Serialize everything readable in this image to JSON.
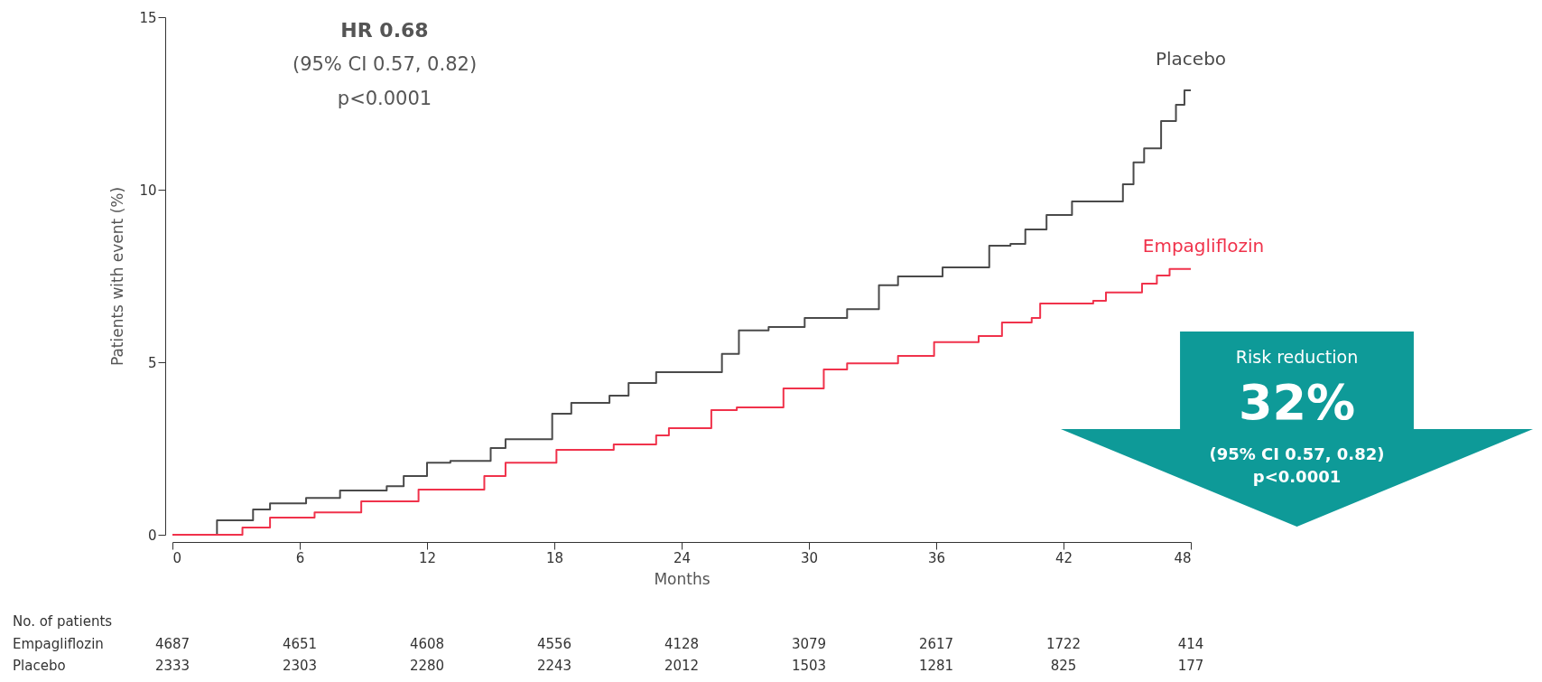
{
  "chart_data": {
    "type": "step",
    "xlabel": "Months",
    "ylabel": "Patients with event (%)",
    "xlim": [
      0,
      48
    ],
    "xticks": [
      0,
      6,
      12,
      18,
      24,
      30,
      36,
      42,
      48
    ],
    "ylim": [
      0,
      15
    ],
    "yticks": [
      0,
      5,
      10,
      15
    ],
    "grid": false,
    "legend": false,
    "series": [
      {
        "name": "Placebo",
        "color": "#4a4a4a",
        "x": [
          0,
          2.1,
          3.8,
          4.6,
          6.3,
          7.9,
          10.1,
          10.9,
          12.0,
          13.1,
          15.0,
          15.7,
          17.9,
          18.8,
          20.6,
          21.5,
          22.8,
          25.9,
          26.7,
          28.1,
          29.8,
          31.8,
          33.3,
          34.2,
          36.3,
          38.5,
          39.5,
          40.2,
          41.2,
          42.4,
          44.0,
          44.8,
          45.3,
          45.8,
          46.6,
          47.3,
          47.7,
          48.0
        ],
        "values": [
          0,
          0.42,
          0.73,
          0.91,
          1.07,
          1.28,
          1.41,
          1.7,
          2.09,
          2.14,
          2.51,
          2.77,
          3.51,
          3.82,
          4.03,
          4.4,
          4.71,
          5.24,
          5.92,
          6.02,
          6.28,
          6.54,
          7.23,
          7.49,
          7.75,
          8.38,
          8.43,
          8.85,
          9.27,
          9.66,
          9.66,
          10.16,
          10.79,
          11.2,
          11.99,
          12.46,
          12.88,
          12.88
        ]
      },
      {
        "name": "Empagliflozin",
        "color": "#f0324b",
        "x": [
          0,
          3.3,
          4.6,
          6.7,
          8.9,
          11.6,
          14.7,
          15.7,
          18.1,
          20.8,
          22.8,
          23.4,
          25.4,
          26.6,
          28.8,
          30.7,
          31.8,
          34.2,
          35.9,
          38.0,
          39.1,
          40.5,
          40.9,
          43.4,
          44.0,
          45.7,
          46.4,
          47.0,
          48.0
        ],
        "values": [
          0,
          0.21,
          0.5,
          0.65,
          0.97,
          1.31,
          1.7,
          2.09,
          2.46,
          2.62,
          2.88,
          3.09,
          3.61,
          3.69,
          4.24,
          4.79,
          4.97,
          5.18,
          5.58,
          5.76,
          6.15,
          6.28,
          6.7,
          6.78,
          7.02,
          7.28,
          7.51,
          7.7,
          7.7
        ]
      }
    ],
    "annotations": [
      "HR 0.68",
      "(95% CI 0.57, 0.82)",
      "p<0.0001",
      "Risk reduction",
      "32%",
      "(95% CI 0.57, 0.82)",
      "p<0.0001",
      "No. of patients",
      "Empagliflozin",
      "4687",
      "4651",
      "4608",
      "4556",
      "4128",
      "3079",
      "2617",
      "1722",
      "414",
      "Placebo",
      "2333",
      "2303",
      "2280",
      "2243",
      "2012",
      "1503",
      "1281",
      "825",
      "177"
    ]
  }
}
